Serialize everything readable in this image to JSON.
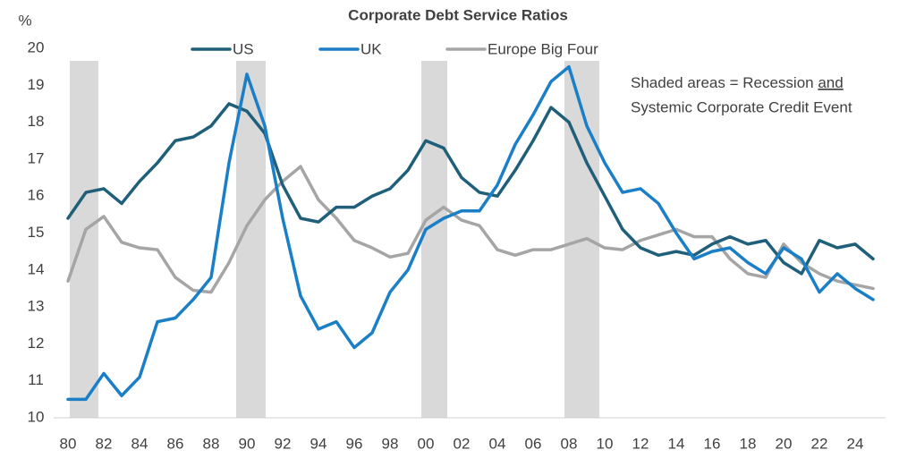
{
  "chart_data": {
    "type": "line",
    "title": "Corporate Debt Service Ratios",
    "ylabel": "%",
    "annotation": [
      "Shaded areas = Recession",
      "and",
      "Systemic Corporate Credit Event"
    ],
    "x": [
      1980,
      1981,
      1982,
      1983,
      1984,
      1985,
      1986,
      1987,
      1988,
      1989,
      1990,
      1991,
      1992,
      1993,
      1994,
      1995,
      1996,
      1997,
      1998,
      1999,
      2000,
      2001,
      2002,
      2003,
      2004,
      2005,
      2006,
      2007,
      2008,
      2009,
      2010,
      2011,
      2012,
      2013,
      2014,
      2015,
      2016,
      2017,
      2018,
      2019,
      2020,
      2021,
      2022,
      2023,
      2024,
      2025
    ],
    "series": [
      {
        "name": "US",
        "color": "#1f5f7a",
        "values": [
          15.4,
          16.1,
          16.2,
          15.8,
          16.4,
          16.9,
          17.5,
          17.6,
          17.9,
          18.5,
          18.3,
          17.7,
          16.3,
          15.4,
          15.3,
          15.7,
          15.7,
          16.0,
          16.2,
          16.7,
          17.5,
          17.3,
          16.5,
          16.1,
          16.0,
          16.7,
          17.5,
          18.4,
          18.0,
          16.9,
          16.0,
          15.1,
          14.6,
          14.4,
          14.5,
          14.4,
          14.7,
          14.9,
          14.7,
          14.8,
          14.2,
          13.9,
          14.8,
          14.6,
          14.7,
          14.3
        ]
      },
      {
        "name": "UK",
        "color": "#1a7fc7",
        "values": [
          10.5,
          10.5,
          11.2,
          10.6,
          11.1,
          12.6,
          12.7,
          13.2,
          13.8,
          16.9,
          19.3,
          17.9,
          15.4,
          13.3,
          12.4,
          12.6,
          11.9,
          12.3,
          13.4,
          14.0,
          15.1,
          15.4,
          15.6,
          15.6,
          16.3,
          17.4,
          18.2,
          19.1,
          19.5,
          17.9,
          16.9,
          16.1,
          16.2,
          15.8,
          15.0,
          14.3,
          14.5,
          14.6,
          14.2,
          13.9,
          14.6,
          14.3,
          13.4,
          13.9,
          13.5,
          13.2
        ]
      },
      {
        "name": "Europe Big Four",
        "color": "#a5a5a5",
        "values": [
          13.7,
          15.1,
          15.45,
          14.75,
          14.6,
          14.55,
          13.8,
          13.45,
          13.4,
          14.2,
          15.2,
          15.9,
          16.4,
          16.8,
          15.9,
          15.4,
          14.8,
          14.6,
          14.35,
          14.45,
          15.35,
          15.7,
          15.35,
          15.2,
          14.55,
          14.4,
          14.55,
          14.55,
          14.7,
          14.85,
          14.6,
          14.55,
          14.8,
          14.95,
          15.1,
          14.9,
          14.9,
          14.3,
          13.9,
          13.8,
          14.7,
          14.2,
          13.9,
          13.7,
          13.6,
          13.5
        ]
      }
    ],
    "recessions": [
      [
        1980.1,
        1981.7
      ],
      [
        1989.4,
        1991.05
      ],
      [
        1999.75,
        2001.2
      ],
      [
        2007.75,
        2009.7
      ]
    ],
    "recession_color": "#d9d9d9",
    "xlim": [
      1979.2,
      2025.7
    ],
    "xticks": [
      {
        "value": 1980,
        "label": "80"
      },
      {
        "value": 1982,
        "label": "82"
      },
      {
        "value": 1984,
        "label": "84"
      },
      {
        "value": 1986,
        "label": "86"
      },
      {
        "value": 1988,
        "label": "88"
      },
      {
        "value": 1990,
        "label": "90"
      },
      {
        "value": 1992,
        "label": "92"
      },
      {
        "value": 1994,
        "label": "94"
      },
      {
        "value": 1996,
        "label": "96"
      },
      {
        "value": 1998,
        "label": "98"
      },
      {
        "value": 2000,
        "label": "00"
      },
      {
        "value": 2002,
        "label": "02"
      },
      {
        "value": 2004,
        "label": "04"
      },
      {
        "value": 2006,
        "label": "06"
      },
      {
        "value": 2008,
        "label": "08"
      },
      {
        "value": 2010,
        "label": "10"
      },
      {
        "value": 2012,
        "label": "12"
      },
      {
        "value": 2014,
        "label": "14"
      },
      {
        "value": 2016,
        "label": "16"
      },
      {
        "value": 2018,
        "label": "18"
      },
      {
        "value": 2020,
        "label": "20"
      },
      {
        "value": 2022,
        "label": "22"
      },
      {
        "value": 2024,
        "label": "24"
      }
    ],
    "ylim": [
      10,
      20
    ],
    "yticks": [
      10,
      11,
      12,
      13,
      14,
      15,
      16,
      17,
      18,
      19,
      20
    ],
    "grid": false
  }
}
